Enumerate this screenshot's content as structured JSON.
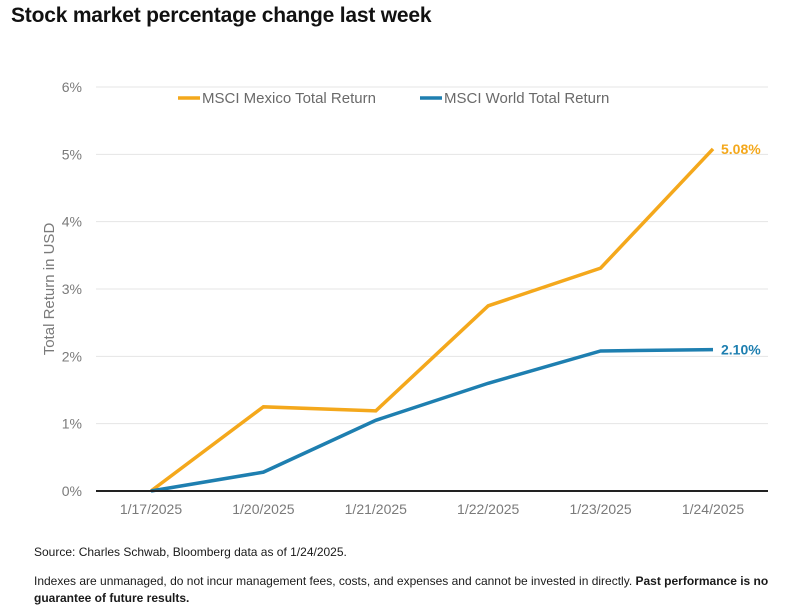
{
  "title": "Stock market percentage change last week",
  "source": "Source: Charles Schwab, Bloomberg data as of 1/24/2025.",
  "disclaimer": {
    "text": "Indexes are unmanaged, do not incur management fees, costs, and expenses and cannot be invested in directly.",
    "bold": "Past performance is no guarantee of future results."
  },
  "chart_data": {
    "type": "line",
    "title": "",
    "xlabel": "",
    "ylabel": "Total Return in USD",
    "categories": [
      "1/17/2025",
      "1/20/2025",
      "1/21/2025",
      "1/22/2025",
      "1/23/2025",
      "1/24/2025"
    ],
    "ylim": [
      0,
      6
    ],
    "yticks": [
      0,
      1,
      2,
      3,
      4,
      5,
      6
    ],
    "ytick_labels": [
      "0%",
      "1%",
      "2%",
      "3%",
      "4%",
      "5%",
      "6%"
    ],
    "grid": true,
    "legend_position": "top",
    "series": [
      {
        "name": "MSCI Mexico Total Return",
        "color": "#F4A81C",
        "values": [
          0,
          1.25,
          1.19,
          2.75,
          3.31,
          5.08
        ],
        "end_label": "5.08%"
      },
      {
        "name": "MSCI World Total Return",
        "color": "#1E7FB0",
        "values": [
          0,
          0.28,
          1.05,
          1.6,
          2.08,
          2.1
        ],
        "end_label": "2.10%"
      }
    ]
  }
}
